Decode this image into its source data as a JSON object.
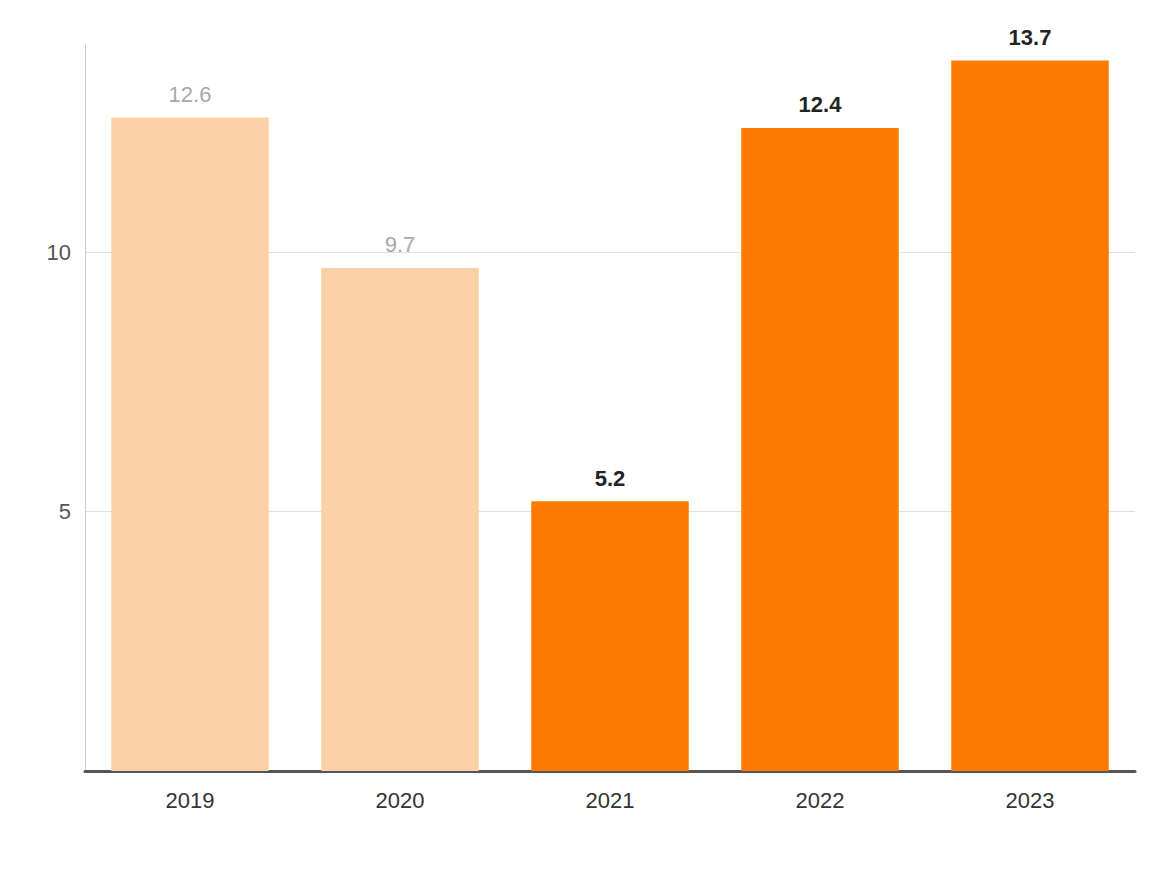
{
  "chart_data": {
    "type": "bar",
    "categories": [
      "2019",
      "2020",
      "2021",
      "2022",
      "2023"
    ],
    "values": [
      12.6,
      9.7,
      5.2,
      12.4,
      13.7
    ],
    "colors": [
      "#fdd1a8",
      "#fdd1a8",
      "#ff7b00",
      "#ff7b00",
      "#ff7b00"
    ],
    "ylim": [
      0,
      14
    ],
    "yticks": [
      5,
      10
    ],
    "grid": true,
    "data_labels": true
  }
}
